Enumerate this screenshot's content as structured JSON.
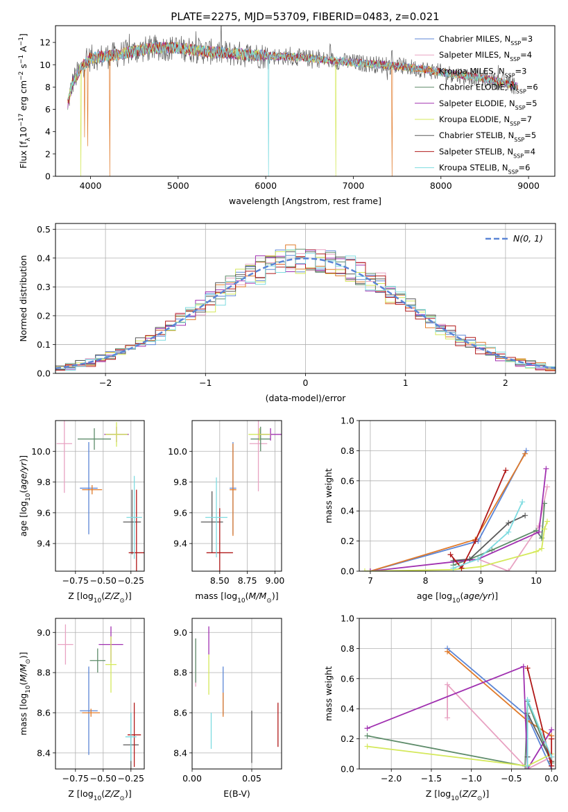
{
  "title": "PLATE=2275, MJD=53709, FIBERID=0483, z=0.021",
  "colors": [
    "#5b85d6",
    "#e8a2c2",
    "#e07a2a",
    "#5e8c6a",
    "#a030b0",
    "#d4e85a",
    "#595959",
    "#b01818",
    "#7ddbe0"
  ],
  "spectrum_legend": [
    "Chabrier MILES, N$_{SSP}$=3",
    "Salpeter MILES, N$_{SSP}$=4",
    "Kroupa MILES, N$_{SSP}$=3",
    "Chabrier ELODIE, N$_{SSP}$=6",
    "Salpeter ELODIE, N$_{SSP}$=5",
    "Kroupa ELODIE, N$_{SSP}$=7",
    "Chabrier STELIB, N$_{SSP}$=5",
    "Salpeter STELIB, N$_{SSP}$=4",
    "Kroupa STELIB, N$_{SSP}$=6"
  ],
  "legend_display": [
    {
      "pre": "Chabrier MILES, N",
      "sub": "SSP",
      "post": "=3"
    },
    {
      "pre": "Salpeter MILES, N",
      "sub": "SSP",
      "post": "=4"
    },
    {
      "pre": "Kroupa MILES, N",
      "sub": "SSP",
      "post": "=3"
    },
    {
      "pre": "Chabrier ELODIE, N",
      "sub": "SSP",
      "post": "=6"
    },
    {
      "pre": "Salpeter ELODIE, N",
      "sub": "SSP",
      "post": "=5"
    },
    {
      "pre": "Kroupa ELODIE, N",
      "sub": "SSP",
      "post": "=7"
    },
    {
      "pre": "Chabrier STELIB, N",
      "sub": "SSP",
      "post": "=5"
    },
    {
      "pre": "Salpeter STELIB, N",
      "sub": "SSP",
      "post": "=4"
    },
    {
      "pre": "Kroupa STELIB, N",
      "sub": "SSP",
      "post": "=6"
    }
  ],
  "chart_data": [
    {
      "id": "spectrum",
      "type": "line",
      "xlabel": "wavelength [Angstrom, rest frame]",
      "ylabel": "Flux [f$_\\lambda$10$^{-17}$ erg cm$^{-2}$ s$^{-1}$ A$^{-1}$]",
      "xlim": [
        3600,
        9300
      ],
      "ylim": [
        0,
        13.5
      ],
      "xticks": [
        4000,
        5000,
        6000,
        7000,
        8000,
        9000
      ],
      "yticks": [
        0,
        2,
        4,
        6,
        8,
        10,
        12
      ],
      "legend_position": "top-right",
      "continuum": {
        "x": [
          3740,
          3800,
          3900,
          4000,
          4100,
          4300,
          4500,
          4700,
          5000,
          5300,
          5600,
          6000,
          6300,
          6600,
          7000,
          7300,
          7600,
          7800,
          8000,
          8300,
          8600,
          8800,
          8900
        ],
        "y": [
          6.5,
          8.5,
          9.8,
          10.6,
          10.7,
          10.9,
          11.2,
          11.5,
          11.5,
          11.2,
          11.0,
          10.8,
          10.7,
          10.5,
          10.2,
          10.0,
          9.8,
          9.6,
          9.3,
          9.0,
          8.6,
          8.2,
          8.0
        ]
      },
      "dips": [
        {
          "x": 3890,
          "to": 0,
          "series": 5
        },
        {
          "x": 3934,
          "to": 3.5,
          "series": 2
        },
        {
          "x": 3968,
          "to": 2.7,
          "series": 2
        },
        {
          "x": 4220,
          "to": 0,
          "series": 2
        },
        {
          "x": 6030,
          "to": 0,
          "series": 8
        },
        {
          "x": 6800,
          "to": 0,
          "series": 5
        },
        {
          "x": 7440,
          "to": 0,
          "series": 2
        }
      ]
    },
    {
      "id": "residuals",
      "type": "histogram",
      "xlabel": "(data-model)/error",
      "ylabel": "Normed distribution",
      "xlim": [
        -2.5,
        2.5
      ],
      "ylim": [
        0,
        0.52
      ],
      "xticks": [
        -2,
        -1,
        0,
        1,
        2
      ],
      "yticks": [
        0.0,
        0.1,
        0.2,
        0.3,
        0.4,
        0.5
      ],
      "bin_width": 0.1,
      "reference_curve": "N(0,1)",
      "reference_label": "N(0, 1)"
    },
    {
      "id": "age-vs-Z",
      "type": "scatter",
      "xlabel": "Z [log10(Z/Z⊙)]",
      "ylabel": "age  [log10(age/yr)]",
      "xlim": [
        -0.93,
        -0.13
      ],
      "ylim": [
        9.22,
        10.2
      ],
      "xticks": [
        -0.75,
        -0.5,
        -0.25
      ],
      "yticks": [
        9.4,
        9.6,
        9.8,
        10.0
      ],
      "points": [
        {
          "s": 0,
          "x": -0.63,
          "y": 9.76,
          "xe": 0.08,
          "ye": 0.3
        },
        {
          "s": 1,
          "x": -0.85,
          "y": 10.05,
          "xe": 0.07,
          "ye": 0.32
        },
        {
          "s": 2,
          "x": -0.6,
          "y": 9.75,
          "xe": 0.09,
          "ye": 0.03
        },
        {
          "s": 3,
          "x": -0.58,
          "y": 10.08,
          "xe": 0.15,
          "ye": 0.07
        },
        {
          "s": 4,
          "x": -0.38,
          "y": 10.11,
          "xe": 0.11,
          "ye": 0.05
        },
        {
          "s": 5,
          "x": -0.38,
          "y": 10.11,
          "xe": 0.1,
          "ye": 0.08
        },
        {
          "s": 6,
          "x": -0.24,
          "y": 9.54,
          "xe": 0.08,
          "ye": 0.21
        },
        {
          "s": 7,
          "x": -0.2,
          "y": 9.34,
          "xe": 0.07,
          "ye": 0.41
        },
        {
          "s": 8,
          "x": -0.22,
          "y": 9.57,
          "xe": 0.07,
          "ye": 0.27
        }
      ]
    },
    {
      "id": "age-vs-mass",
      "type": "scatter",
      "xlabel": "mass [log10(M/M⊙)]",
      "ylabel": "",
      "xlim": [
        8.25,
        9.06
      ],
      "ylim": [
        9.22,
        10.2
      ],
      "xticks": [
        8.5,
        8.75,
        9.0
      ],
      "yticks": [
        9.4,
        9.6,
        9.8,
        10.0
      ],
      "points": [
        {
          "s": 0,
          "x": 8.62,
          "y": 9.76,
          "xe": 0.03,
          "ye": 0.3
        },
        {
          "s": 1,
          "x": 8.85,
          "y": 10.05,
          "xe": 0.08,
          "ye": 0.31
        },
        {
          "s": 2,
          "x": 8.62,
          "y": 9.75,
          "xe": 0.03,
          "ye": 0.3
        },
        {
          "s": 3,
          "x": 8.87,
          "y": 10.08,
          "xe": 0.09,
          "ye": 0.08
        },
        {
          "s": 4,
          "x": 8.96,
          "y": 10.11,
          "xe": 0.11,
          "ye": 0.04
        },
        {
          "s": 5,
          "x": 8.86,
          "y": 10.11,
          "xe": 0.1,
          "ye": 0.04
        },
        {
          "s": 6,
          "x": 8.43,
          "y": 9.54,
          "xe": 0.1,
          "ye": 0.2
        },
        {
          "s": 7,
          "x": 8.5,
          "y": 9.34,
          "xe": 0.12,
          "ye": 0.29
        },
        {
          "s": 8,
          "x": 8.47,
          "y": 9.57,
          "xe": 0.1,
          "ye": 0.26
        }
      ]
    },
    {
      "id": "massweight-vs-age",
      "type": "line",
      "xlabel": "age  [log10(age/yr)]",
      "ylabel": "mass weight",
      "xlim": [
        6.8,
        10.35
      ],
      "ylim": [
        0,
        1.0
      ],
      "xticks": [
        7,
        8,
        9,
        10
      ],
      "yticks": [
        0.0,
        0.2,
        0.4,
        0.6,
        0.8,
        1.0
      ],
      "series": [
        {
          "s": 0,
          "x": [
            7.0,
            8.95,
            9.82
          ],
          "y": [
            0.0,
            0.2,
            0.8
          ]
        },
        {
          "s": 1,
          "x": [
            8.95,
            9.5,
            10.05,
            10.2
          ],
          "y": [
            0.08,
            0.0,
            0.3,
            0.56
          ]
        },
        {
          "s": 2,
          "x": [
            7.0,
            8.9,
            9.8
          ],
          "y": [
            0.0,
            0.21,
            0.78
          ]
        },
        {
          "s": 3,
          "x": [
            8.5,
            8.8,
            9.2,
            10.0,
            10.1,
            10.15
          ],
          "y": [
            0.04,
            0.08,
            0.14,
            0.27,
            0.22,
            0.45
          ]
        },
        {
          "s": 4,
          "x": [
            7.0,
            8.95,
            10.05,
            10.18
          ],
          "y": [
            0.0,
            0.08,
            0.26,
            0.68
          ]
        },
        {
          "s": 5,
          "x": [
            6.9,
            8.5,
            9.0,
            10.0,
            10.1,
            10.15,
            10.2
          ],
          "y": [
            0.0,
            0.01,
            0.03,
            0.13,
            0.15,
            0.28,
            0.33
          ]
        },
        {
          "s": 6,
          "x": [
            8.5,
            8.8,
            9.5,
            9.8
          ],
          "y": [
            0.07,
            0.08,
            0.32,
            0.37
          ]
        },
        {
          "s": 7,
          "x": [
            8.45,
            8.65,
            8.9,
            9.45
          ],
          "y": [
            0.11,
            0.02,
            0.2,
            0.67
          ]
        },
        {
          "s": 8,
          "x": [
            8.5,
            8.95,
            9.5,
            9.75
          ],
          "y": [
            0.02,
            0.08,
            0.26,
            0.46
          ]
        }
      ]
    },
    {
      "id": "mass-vs-Z",
      "type": "scatter",
      "xlabel": "Z [log10(Z/Z⊙)]",
      "ylabel": "mass [log10(M/M⊙)]",
      "xlim": [
        -0.93,
        -0.13
      ],
      "ylim": [
        8.32,
        9.07
      ],
      "xticks": [
        -0.75,
        -0.5,
        -0.25
      ],
      "yticks": [
        8.4,
        8.6,
        8.8,
        9.0
      ],
      "points": [
        {
          "s": 0,
          "x": -0.63,
          "y": 8.61,
          "xe": 0.08,
          "ye": 0.22
        },
        {
          "s": 1,
          "x": -0.84,
          "y": 8.94,
          "xe": 0.07,
          "ye": 0.1
        },
        {
          "s": 2,
          "x": -0.61,
          "y": 8.6,
          "xe": 0.08,
          "ye": 0.02
        },
        {
          "s": 3,
          "x": -0.55,
          "y": 8.86,
          "xe": 0.07,
          "ye": 0.06
        },
        {
          "s": 4,
          "x": -0.43,
          "y": 8.94,
          "xe": 0.11,
          "ye": 0.09
        },
        {
          "s": 5,
          "x": -0.43,
          "y": 8.84,
          "xe": 0.05,
          "ye": 0.14
        },
        {
          "s": 6,
          "x": -0.25,
          "y": 8.44,
          "xe": 0.07,
          "ye": 0.16
        },
        {
          "s": 7,
          "x": -0.22,
          "y": 8.49,
          "xe": 0.06,
          "ye": 0.16
        },
        {
          "s": 8,
          "x": -0.25,
          "y": 8.48,
          "xe": 0.05,
          "ye": 0.12
        }
      ]
    },
    {
      "id": "mass-vs-ebv",
      "type": "scatter",
      "xlabel": "E(B-V)",
      "ylabel": "",
      "xlim": [
        0,
        0.075
      ],
      "ylim": [
        8.32,
        9.07
      ],
      "xticks": [
        0.0,
        0.05
      ],
      "yticks": [
        8.4,
        8.6,
        8.8,
        9.0
      ],
      "points": [
        {
          "s": 0,
          "x": 0.026,
          "y": 8.71,
          "xe": 0,
          "ye": 0.12
        },
        {
          "s": 1,
          "x": 0.003,
          "y": 8.85,
          "xe": 0,
          "ye": 0.12
        },
        {
          "s": 2,
          "x": 0.026,
          "y": 8.64,
          "xe": 0,
          "ye": 0.06
        },
        {
          "s": 3,
          "x": 0.003,
          "y": 8.86,
          "xe": 0,
          "ye": 0.11
        },
        {
          "s": 4,
          "x": 0.014,
          "y": 8.96,
          "xe": 0,
          "ye": 0.07
        },
        {
          "s": 5,
          "x": 0.014,
          "y": 8.79,
          "xe": 0,
          "ye": 0.1
        },
        {
          "s": 6,
          "x": 0.05,
          "y": 8.48,
          "xe": 0,
          "ye": 0.13
        },
        {
          "s": 7,
          "x": 0.072,
          "y": 8.54,
          "xe": 0,
          "ye": 0.11
        },
        {
          "s": 8,
          "x": 0.016,
          "y": 8.51,
          "xe": 0,
          "ye": 0.09
        }
      ]
    },
    {
      "id": "massweight-vs-Z",
      "type": "line",
      "xlabel": "Z [log10(Z/Z⊙)]",
      "ylabel": "mass weight",
      "xlim": [
        -2.4,
        0.05
      ],
      "ylim": [
        0,
        1.0
      ],
      "xticks": [
        -2.0,
        -1.5,
        -1.0,
        -0.5,
        0.0
      ],
      "yticks": [
        0.0,
        0.2,
        0.4,
        0.6,
        0.8,
        1.0
      ],
      "series": [
        {
          "s": 0,
          "x": [
            -1.3,
            -0.3,
            0.0
          ],
          "y": [
            0.8,
            0.35,
            0.0
          ]
        },
        {
          "s": 1,
          "x": [
            -1.3,
            -1.3,
            -0.3,
            0.0
          ],
          "y": [
            0.34,
            0.56,
            0.0,
            0.08
          ]
        },
        {
          "s": 2,
          "x": [
            -1.3,
            -0.3,
            0.0
          ],
          "y": [
            0.78,
            0.32,
            0.22
          ]
        },
        {
          "s": 3,
          "x": [
            -2.3,
            -0.33,
            -0.3,
            0.0
          ],
          "y": [
            0.22,
            0.02,
            0.45,
            0.04
          ]
        },
        {
          "s": 4,
          "x": [
            -2.3,
            -0.35,
            -0.3,
            0.0
          ],
          "y": [
            0.27,
            0.68,
            0.0,
            0.26
          ]
        },
        {
          "s": 5,
          "x": [
            -2.3,
            -0.3,
            0.0,
            0.0
          ],
          "y": [
            0.15,
            0.02,
            0.1,
            0.05
          ]
        },
        {
          "s": 6,
          "x": [
            -0.3,
            -0.3,
            0.0
          ],
          "y": [
            0.08,
            0.37,
            0.05
          ]
        },
        {
          "s": 7,
          "x": [
            -0.3,
            0.0,
            0.0
          ],
          "y": [
            0.67,
            0.02,
            0.2
          ]
        },
        {
          "s": 8,
          "x": [
            -0.3,
            -0.3,
            0.0
          ],
          "y": [
            0.02,
            0.46,
            0.08
          ]
        }
      ]
    }
  ]
}
